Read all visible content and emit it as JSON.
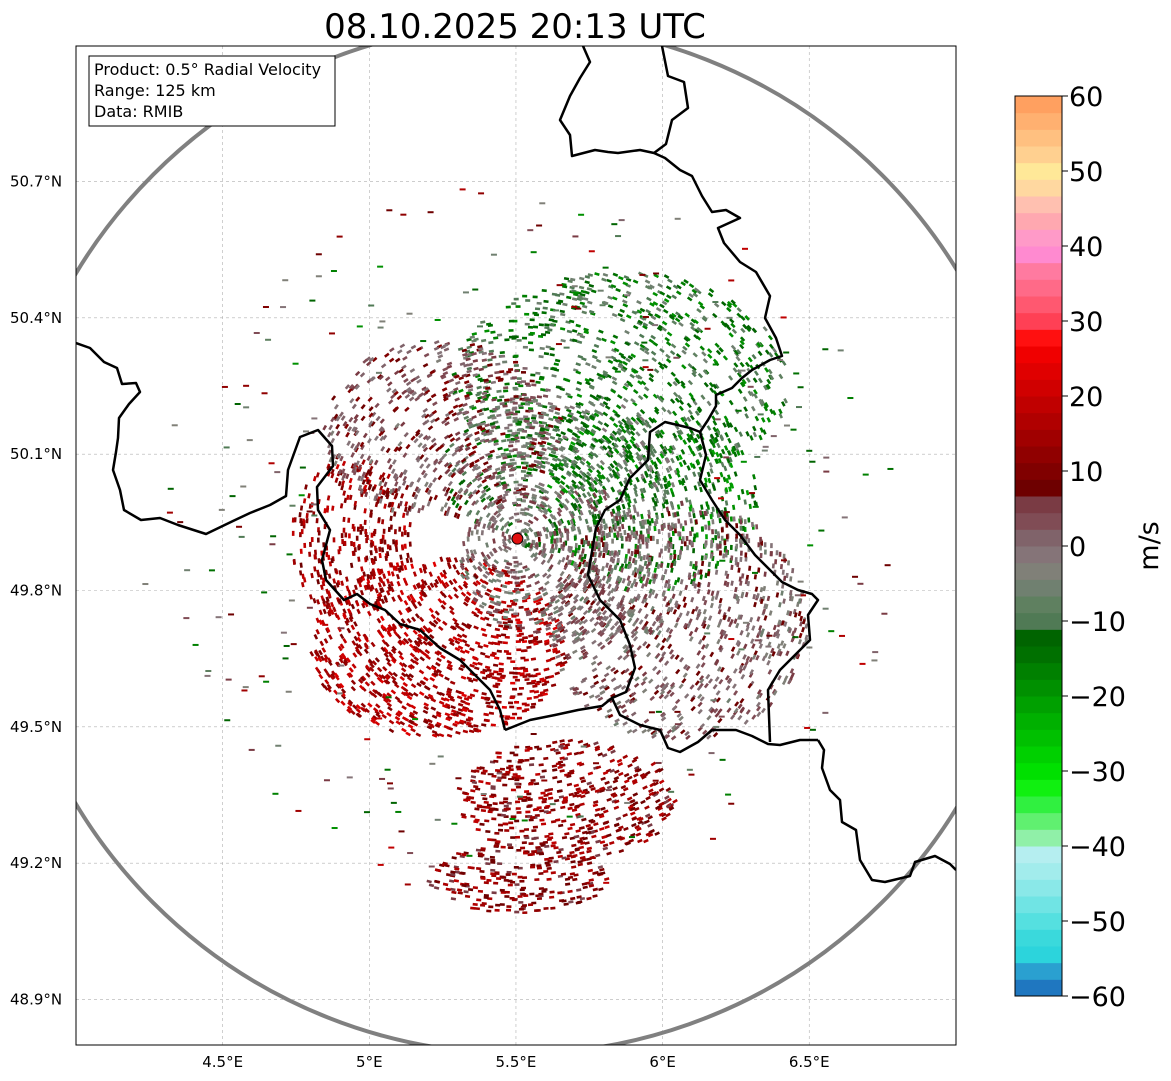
{
  "title": "08.10.2025 20:13 UTC",
  "info_box": {
    "product": "Product: 0.5° Radial Velocity",
    "range": "Range: 125 km",
    "data": "Data: RMIB"
  },
  "map": {
    "lon_range": [
      4.0,
      7.0
    ],
    "lat_range": [
      48.8,
      51.0
    ],
    "lon_ticks": [
      {
        "value": 4.5,
        "label": "4.5°E"
      },
      {
        "value": 5.0,
        "label": "5°E"
      },
      {
        "value": 5.5,
        "label": "5.5°E"
      },
      {
        "value": 6.0,
        "label": "6°E"
      },
      {
        "value": 6.5,
        "label": "6.5°E"
      }
    ],
    "lat_ticks": [
      {
        "value": 50.7,
        "label": "50.7°N"
      },
      {
        "value": 50.4,
        "label": "50.4°N"
      },
      {
        "value": 50.1,
        "label": "50.1°N"
      },
      {
        "value": 49.8,
        "label": "49.8°N"
      },
      {
        "value": 49.5,
        "label": "49.5°N"
      },
      {
        "value": 49.2,
        "label": "49.2°N"
      },
      {
        "value": 48.9,
        "label": "48.9°N"
      }
    ],
    "radar_site": {
      "lon": 5.505,
      "lat": 49.914
    },
    "colors": {
      "border": "#000000",
      "range_ring": "#808080",
      "site": "#e01010",
      "grid": "#b0b0b0"
    }
  },
  "colorbar": {
    "label": "m/s",
    "min": -60,
    "max": 60,
    "ticks": [
      {
        "value": 60,
        "label": "60"
      },
      {
        "value": 50,
        "label": "50"
      },
      {
        "value": 40,
        "label": "40"
      },
      {
        "value": 30,
        "label": "30"
      },
      {
        "value": 20,
        "label": "20"
      },
      {
        "value": 10,
        "label": "10"
      },
      {
        "value": 0,
        "label": "0"
      },
      {
        "value": -10,
        "label": "−10"
      },
      {
        "value": -20,
        "label": "−20"
      },
      {
        "value": -30,
        "label": "−30"
      },
      {
        "value": -40,
        "label": "−40"
      },
      {
        "value": -50,
        "label": "−50"
      },
      {
        "value": -60,
        "label": "−60"
      }
    ],
    "bands": [
      "#1f77c0",
      "#2aa0d0",
      "#2cd4dc",
      "#3ad9dc",
      "#55e0e0",
      "#70e4e4",
      "#8ae8e8",
      "#a2ecec",
      "#b5eef0",
      "#90f0a8",
      "#60f070",
      "#30f040",
      "#10f010",
      "#00e000",
      "#00d000",
      "#00c000",
      "#00b000",
      "#00a000",
      "#009000",
      "#008000",
      "#007000",
      "#006400",
      "#507a55",
      "#5f8060",
      "#708070",
      "#808078",
      "#857478",
      "#80636a",
      "#804c55",
      "#7a3b44",
      "#6e0000",
      "#800000",
      "#900000",
      "#a00000",
      "#b00000",
      "#c00000",
      "#d00000",
      "#e00000",
      "#f00000",
      "#ff1010",
      "#ff4055",
      "#ff5870",
      "#ff6a88",
      "#ff7aa0",
      "#ff8ad0",
      "#ff9ac8",
      "#ffa8b0",
      "#ffc0b0",
      "#ffd8a0",
      "#ffe898",
      "#ffd090",
      "#ffc080",
      "#ffb070",
      "#ffa060"
    ]
  }
}
